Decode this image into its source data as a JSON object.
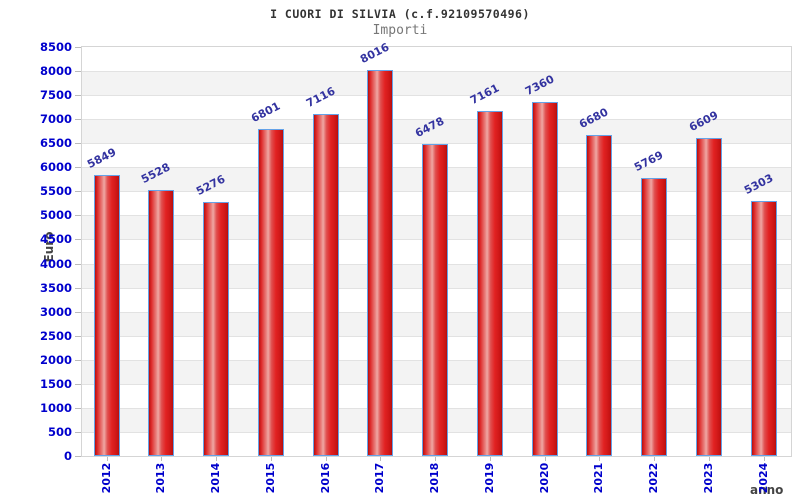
{
  "title": "I CUORI DI SILVIA (c.f.92109570496)",
  "subtitle": "Importi",
  "chart_data": {
    "type": "bar",
    "title": "I CUORI DI SILVIA (c.f.92109570496)",
    "subtitle": "Importi",
    "xlabel": "anno",
    "ylabel": "Euro",
    "categories": [
      "2012",
      "2013",
      "2014",
      "2015",
      "2016",
      "2017",
      "2018",
      "2019",
      "2020",
      "2021",
      "2022",
      "2023",
      "2024"
    ],
    "values": [
      5849,
      5528,
      5276,
      6801,
      7116,
      8016,
      6478,
      7161,
      7360,
      6680,
      5769,
      6609,
      5303
    ],
    "ylim": [
      0,
      8500
    ],
    "ytick_step": 500,
    "ytick_labels": [
      "0",
      "500",
      "1000",
      "1500",
      "2000",
      "2500",
      "3000",
      "3500",
      "4000",
      "4500",
      "5000",
      "5500",
      "6000",
      "6500",
      "7000",
      "7500",
      "8000",
      "8500"
    ],
    "grid": "horizontal-bands",
    "legend": "none",
    "colors": {
      "bar_fill": "#e32222",
      "bar_highlight": "#efa8a4",
      "bar_border": "#64a2e8",
      "value_label": "#3333a0",
      "tick_label": "#0000cc",
      "axis_title": "#444444",
      "band_alt": "#f3f3f3",
      "plot_border": "#d5d5d5"
    }
  }
}
